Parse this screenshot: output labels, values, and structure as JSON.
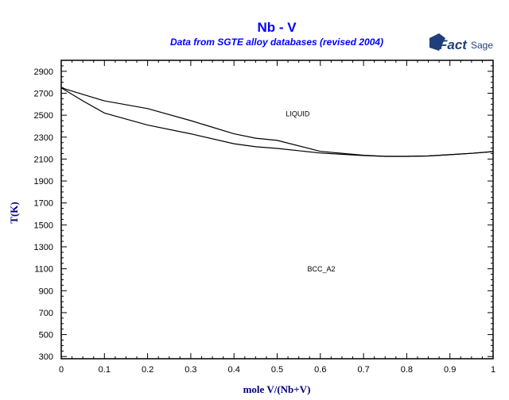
{
  "chart_data": {
    "type": "line",
    "title": "Nb - V",
    "subtitle": "Data from SGTE alloy databases (revised 2004)",
    "xlabel": "mole V/(Nb+V)",
    "ylabel": "T(K)",
    "xlim": [
      0,
      1
    ],
    "ylim": [
      280,
      3000
    ],
    "xticks": [
      "0",
      "0.1",
      "0.2",
      "0.3",
      "0.4",
      "0.5",
      "0.6",
      "0.7",
      "0.8",
      "0.9",
      "1"
    ],
    "yticks": [
      "2900",
      "2700",
      "2500",
      "2300",
      "2100",
      "1900",
      "1700",
      "1500",
      "1300",
      "1100",
      "900",
      "700",
      "500",
      "300"
    ],
    "grid": false,
    "series": [
      {
        "x": [
          0,
          0.05,
          0.1,
          0.2,
          0.3,
          0.4,
          0.45,
          0.5,
          0.6,
          0.7,
          0.75,
          0.8,
          0.85,
          0.9,
          0.95,
          1.0
        ],
        "y": [
          2750,
          2690,
          2630,
          2560,
          2450,
          2330,
          2290,
          2270,
          2170,
          2135,
          2125,
          2125,
          2128,
          2140,
          2152,
          2168
        ]
      },
      {
        "x": [
          0,
          0.05,
          0.1,
          0.2,
          0.3,
          0.4,
          0.45,
          0.5,
          0.6,
          0.7,
          0.75,
          0.8,
          0.85,
          0.9,
          0.95,
          1.0
        ],
        "y": [
          2750,
          2630,
          2520,
          2410,
          2330,
          2240,
          2212,
          2197,
          2155,
          2132,
          2125,
          2125,
          2128,
          2140,
          2152,
          2168
        ]
      }
    ],
    "annotations": [
      {
        "text": "LIQUID",
        "x": 0.52,
        "y": 2490
      },
      {
        "text": "BCC_A2",
        "x": 0.57,
        "y": 1075
      }
    ],
    "colors": {
      "title": "#0000ff",
      "axis_label": "#000080",
      "curve": "#000000"
    }
  },
  "logo": {
    "text": "FactSage"
  }
}
